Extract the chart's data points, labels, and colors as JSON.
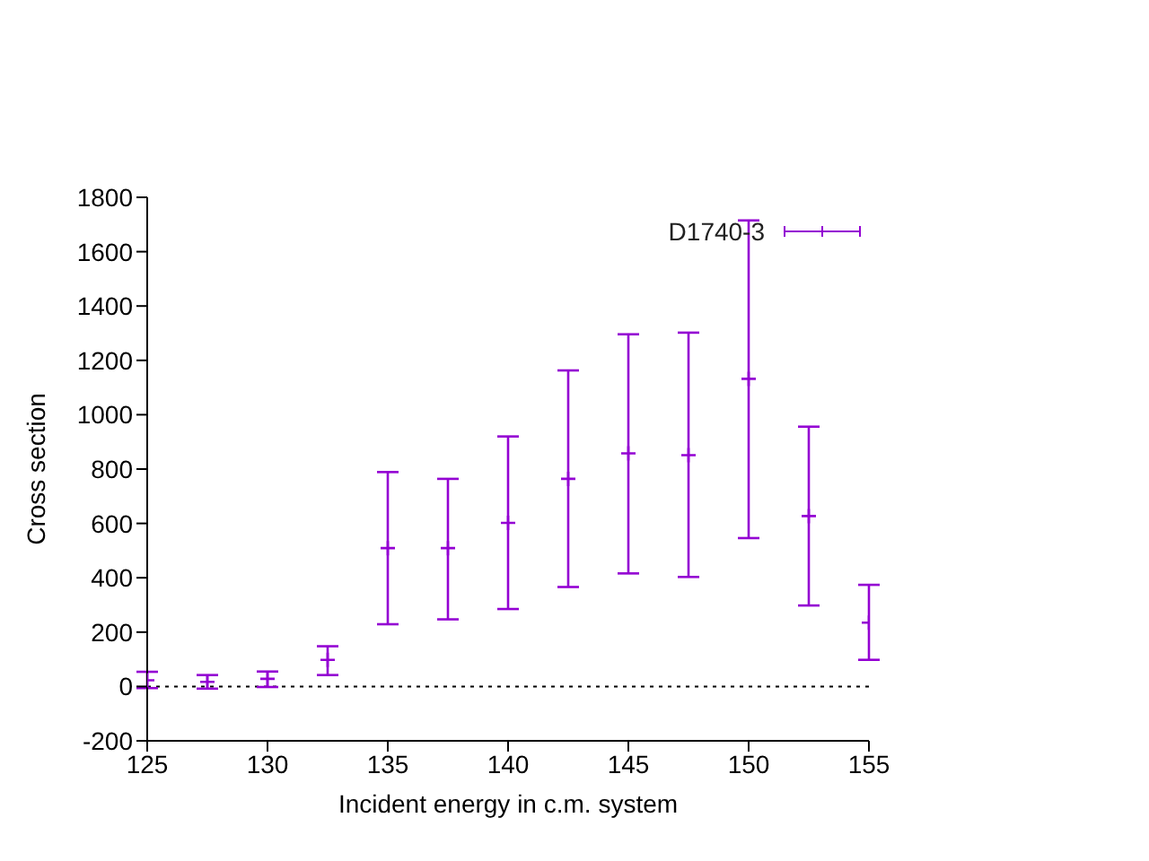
{
  "chart_data": {
    "type": "scatter",
    "xlabel": "Incident energy in c.m. system",
    "ylabel": "Cross section",
    "x": [
      125,
      127.5,
      130,
      132.5,
      135,
      137.5,
      140,
      142.5,
      145,
      147.5,
      150,
      152.5,
      155
    ],
    "series": [
      {
        "name": "D1740-3",
        "color": "#9400d3",
        "values": [
          23,
          17,
          28,
          98,
          509,
          509,
          602,
          764,
          858,
          851,
          1132,
          627,
          235
        ],
        "errors": [
          [
            -6,
            54
          ],
          [
            -8,
            42
          ],
          [
            -2,
            55
          ],
          [
            42,
            148
          ],
          [
            229,
            789
          ],
          [
            247,
            764
          ],
          [
            285,
            920
          ],
          [
            366,
            1163
          ],
          [
            416,
            1296
          ],
          [
            403,
            1302
          ],
          [
            546,
            1715
          ],
          [
            298,
            956
          ],
          [
            98,
            374
          ]
        ]
      }
    ],
    "xlim": [
      125,
      155
    ],
    "xticks": [
      125,
      130,
      135,
      140,
      145,
      150,
      155
    ],
    "ylim": [
      -200,
      1800
    ],
    "yticks": [
      -200,
      0,
      200,
      400,
      600,
      800,
      1000,
      1200,
      1400,
      1600,
      1800
    ],
    "ref_lines": [
      {
        "axis": "y",
        "value": 0,
        "color": "#000000",
        "line_style": "dotted"
      }
    ],
    "legend": "top right",
    "grid": false,
    "marker": "cross"
  }
}
